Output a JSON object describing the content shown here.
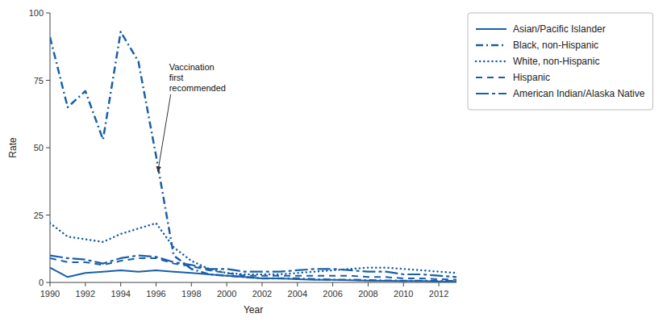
{
  "chart_data": {
    "type": "line",
    "x_label": "Year",
    "y_label": "Rate",
    "x": [
      1990,
      1991,
      1992,
      1993,
      1994,
      1995,
      1996,
      1997,
      1998,
      1999,
      2000,
      2001,
      2002,
      2003,
      2004,
      2005,
      2006,
      2007,
      2008,
      2009,
      2010,
      2011,
      2012,
      2013
    ],
    "xlim": [
      1990,
      2013
    ],
    "xticks": [
      1990,
      1992,
      1994,
      1996,
      1998,
      2000,
      2002,
      2004,
      2006,
      2008,
      2010,
      2012
    ],
    "ylim": [
      0,
      100
    ],
    "yticks": [
      0,
      25,
      50,
      75,
      100
    ],
    "grid": false,
    "legend": "right",
    "series": [
      {
        "name": "Asian/Pacific Islander",
        "color": "#1a5fa8",
        "line_style": "solid",
        "values": [
          5.5,
          2.0,
          3.5,
          4.0,
          4.5,
          4.0,
          4.5,
          4.0,
          3.5,
          3.0,
          2.5,
          2.0,
          1.5,
          1.5,
          1.2,
          1.0,
          1.0,
          0.8,
          0.7,
          0.6,
          0.5,
          0.5,
          0.4,
          0.4
        ]
      },
      {
        "name": "Black, non-Hispanic",
        "color": "#1a5fa8",
        "line_style": "dashdot",
        "values": [
          91,
          65,
          71,
          53,
          93,
          82,
          47,
          10,
          5,
          3,
          2.5,
          2,
          1.5,
          1.5,
          1.5,
          1.2,
          1.0,
          1.0,
          0.8,
          0.7,
          0.6,
          0.6,
          0.5,
          0.5
        ]
      },
      {
        "name": "White, non-Hispanic",
        "color": "#1a5fa8",
        "line_style": "dotted",
        "values": [
          22,
          17,
          16,
          15,
          18,
          20,
          22,
          13,
          8,
          5,
          3.5,
          3,
          3,
          3,
          3.5,
          4,
          4.5,
          5,
          5.5,
          5.5,
          5,
          4.5,
          4,
          3.5
        ]
      },
      {
        "name": "Hispanic",
        "color": "#1a5fa8",
        "line_style": "dashed",
        "values": [
          9.0,
          7.5,
          7.5,
          6.5,
          8.0,
          9.0,
          9.0,
          7.0,
          6.0,
          4.5,
          3.5,
          2.5,
          2.5,
          2.5,
          2.5,
          2.5,
          2.5,
          2.5,
          2.0,
          2.0,
          1.5,
          1.5,
          1.2,
          1.0
        ]
      },
      {
        "name": "American Indian/Alaska Native",
        "color": "#1a5fa8",
        "line_style": "longdashdot",
        "values": [
          10,
          9,
          8.5,
          7,
          9,
          10,
          9.5,
          7.5,
          6.5,
          5,
          5,
          4,
          4,
          4,
          4.5,
          5,
          5,
          4.5,
          4,
          4,
          3,
          3,
          2.5,
          2
        ]
      }
    ],
    "annotations": [
      {
        "text": "Vaccination\nfirst\nrecommended",
        "x": 1996.1,
        "y": 41
      }
    ]
  }
}
